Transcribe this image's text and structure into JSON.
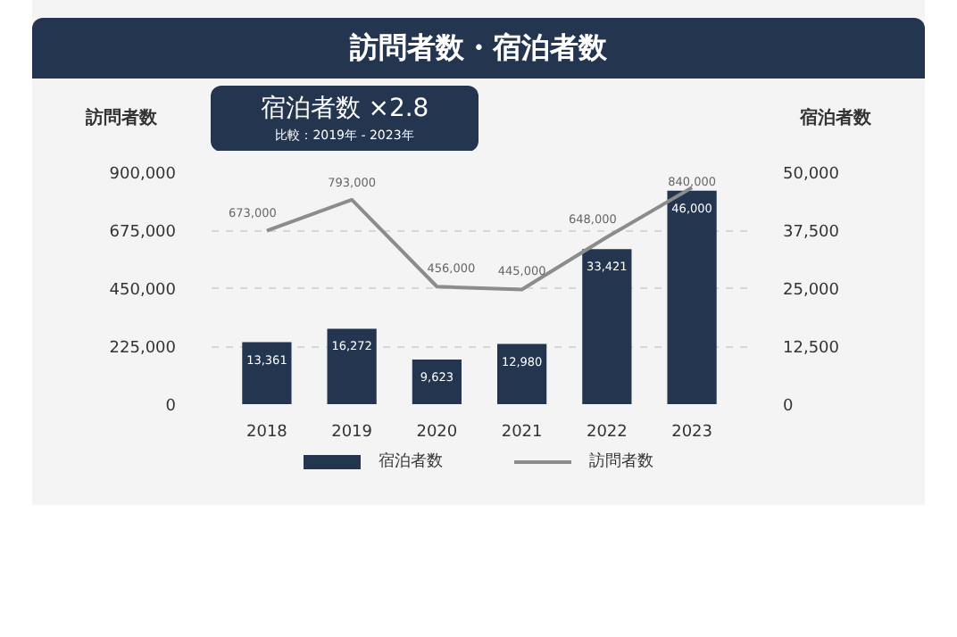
{
  "chart_data": {
    "type": "bar",
    "title": "訪問者数・宿泊者数",
    "ylabel": "訪問者数",
    "y2label": "宿泊者数",
    "categories": [
      "2018",
      "2019",
      "2020",
      "2021",
      "2022",
      "2023"
    ],
    "series": [
      {
        "name": "宿泊者数",
        "axis": "y2",
        "color": "#243550",
        "values": [
          13361,
          16272,
          9623,
          12980,
          33421,
          46000
        ],
        "value_labels": [
          "13,361",
          "16,272",
          "9,623",
          "12,980",
          "33,421",
          "46,000"
        ]
      },
      {
        "name": "訪問者数",
        "type": "line",
        "color": "#8c8c8c",
        "values": [
          673000,
          793000,
          456000,
          445000,
          648000,
          840000
        ],
        "value_labels": [
          "673,000",
          "793,000",
          "456,000",
          "445,000",
          "648,000",
          "840,000"
        ]
      }
    ],
    "ylim": [
      0,
      900000
    ],
    "yticks": [
      {
        "value": 0,
        "label": "0"
      },
      {
        "value": 225000,
        "label": "225,000"
      },
      {
        "value": 450000,
        "label": "450,000"
      },
      {
        "value": 675000,
        "label": "675,000"
      },
      {
        "value": 900000,
        "label": "900,000"
      }
    ],
    "y2lim": [
      0,
      50000
    ],
    "y2ticks": [
      {
        "value": 0,
        "label": "0"
      },
      {
        "value": 12500,
        "label": "12,500"
      },
      {
        "value": 25000,
        "label": "25,000"
      },
      {
        "value": 37500,
        "label": "37,500"
      },
      {
        "value": 50000,
        "label": "50,000"
      }
    ],
    "grid": "y",
    "legend": "bottom",
    "line_style": "solid",
    "annotations": [
      "宿泊者数 ×2.8",
      "比較：2019年 - 2023年"
    ]
  }
}
